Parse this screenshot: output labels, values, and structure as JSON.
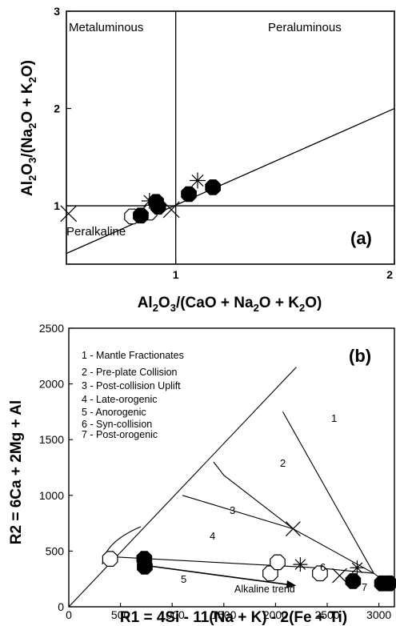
{
  "chart_data": [
    {
      "type": "scatter",
      "panel_label": "(a)",
      "xlabel": "Al2O3/(CaO + Na2O + K2O)",
      "ylabel": "Al2O3/(Na2O + K2O)",
      "xlim": [
        0.5,
        2.0
      ],
      "ylim": [
        0.4,
        3.0
      ],
      "x_ticks": [
        "1",
        "2"
      ],
      "y_ticks": [
        "1",
        "2",
        "3"
      ],
      "field_labels": [
        "Metaluminous",
        "Peraluminous",
        "Peralkaline"
      ],
      "divider_lines": [
        {
          "x": [
            0.5,
            2.0
          ],
          "y": [
            1,
            1
          ]
        },
        {
          "x": [
            1,
            1
          ],
          "y": [
            0.4,
            3.0
          ]
        },
        {
          "x": [
            0.5,
            2.0
          ],
          "y": [
            0.51,
            2.0
          ]
        }
      ],
      "series": [
        {
          "marker": "filled-circle",
          "points": [
            [
              0.84,
              0.9
            ],
            [
              0.91,
              1.04
            ],
            [
              0.92,
              0.99
            ],
            [
              1.06,
              1.12
            ],
            [
              1.17,
              1.19
            ]
          ]
        },
        {
          "marker": "open-circle",
          "points": [
            [
              0.8,
              0.89
            ],
            [
              0.88,
              0.93
            ]
          ]
        },
        {
          "marker": "x-cross",
          "points": [
            [
              0.51,
              0.92
            ],
            [
              0.98,
              0.96
            ]
          ]
        },
        {
          "marker": "asterisk",
          "points": [
            [
              0.88,
              1.05
            ],
            [
              1.1,
              1.26
            ]
          ]
        }
      ]
    },
    {
      "type": "scatter",
      "panel_label": "(b)",
      "xlabel": "R1 = 4Si - 11(Na + K) - 2(Fe + Ti)",
      "ylabel": "R2 = 6Ca + 2Mg + Al",
      "xlim": [
        0,
        3150
      ],
      "ylim": [
        0,
        2500
      ],
      "x_ticks": [
        "0",
        "500",
        "1000",
        "1500",
        "2000",
        "2500",
        "3000"
      ],
      "y_ticks": [
        "0",
        "500",
        "1000",
        "1500",
        "2000",
        "2500"
      ],
      "legend": [
        "1 - Mantle Fractionates",
        "2 - Pre-plate Collision",
        "3 - Post-collision Uplift",
        "4 - Late-orogenic",
        "5 - Anorogenic",
        "6 - Syn-collision",
        "7 - Post-orogenic"
      ],
      "field_numbers": [
        "1",
        "2",
        "3",
        "4",
        "5",
        "6",
        "7"
      ],
      "annotation": "Alkaline trend",
      "boundary_lines": [
        {
          "x": [
            0,
            2200
          ],
          "y": [
            0,
            2150
          ]
        },
        {
          "x": [
            1100,
            2170,
            2950,
            3100
          ],
          "y": [
            1000,
            700,
            300,
            200
          ]
        },
        {
          "x": [
            2070,
            2950
          ],
          "y": [
            1750,
            300
          ]
        },
        {
          "x": [
            1400,
            1500,
            2170
          ],
          "y": [
            1300,
            1180,
            700
          ]
        },
        {
          "x": [
            400,
            2400,
            2950
          ],
          "y": [
            450,
            350,
            300
          ]
        }
      ],
      "trend_arrow": {
        "x": [
          750,
          2200
        ],
        "y": [
          370,
          190
        ]
      },
      "series": [
        {
          "marker": "filled-circle",
          "points": [
            [
              730,
              430
            ],
            [
              735,
              360
            ],
            [
              2750,
              230
            ],
            [
              3030,
              210
            ],
            [
              3100,
              210
            ]
          ]
        },
        {
          "marker": "open-circle",
          "points": [
            [
              400,
              430
            ],
            [
              1950,
              300
            ],
            [
              2020,
              400
            ],
            [
              2430,
              300
            ]
          ]
        },
        {
          "marker": "x-cross",
          "points": [
            [
              2170,
              700
            ],
            [
              2620,
              280
            ]
          ]
        },
        {
          "marker": "asterisk",
          "points": [
            [
              2240,
              380
            ],
            [
              2790,
              350
            ]
          ]
        }
      ]
    }
  ]
}
